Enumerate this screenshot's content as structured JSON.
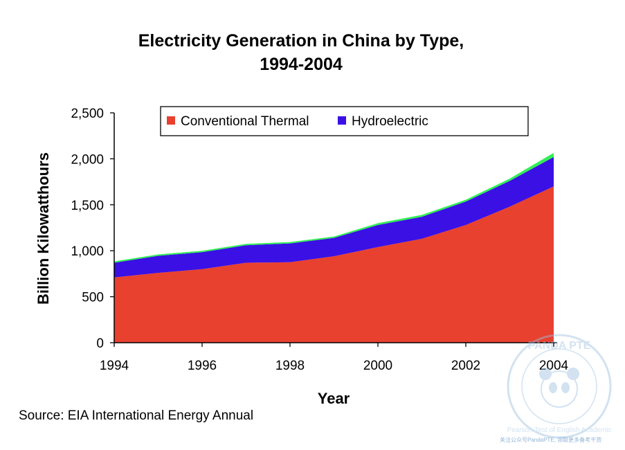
{
  "chart_data": {
    "type": "area",
    "title_line1": "Electricity Generation in China by Type,",
    "title_line2": "1994-2004",
    "xlabel": "Year",
    "ylabel": "Billion Kilowatthours",
    "xlim": [
      1994,
      2004
    ],
    "ylim": [
      0,
      2500
    ],
    "x_ticks": [
      "1994",
      "1996",
      "1998",
      "2000",
      "2002",
      "2004"
    ],
    "y_ticks": [
      "0",
      "500",
      "1,000",
      "1,500",
      "2,000",
      "2,500"
    ],
    "grid": false,
    "legend_position": "top",
    "stacked": true,
    "x": [
      1994,
      1995,
      1996,
      1997,
      1998,
      1999,
      2000,
      2001,
      2002,
      2003,
      2004
    ],
    "series": [
      {
        "name": "Conventional Thermal",
        "color": "#e8412f",
        "values": [
          710,
          760,
          800,
          870,
          875,
          940,
          1040,
          1130,
          1280,
          1480,
          1700
        ]
      },
      {
        "name": "Hydroelectric",
        "color": "#3a10e5",
        "values": [
          160,
          185,
          185,
          190,
          205,
          200,
          240,
          240,
          255,
          280,
          320
        ]
      },
      {
        "color": "#33ee55",
        "values": [
          15,
          15,
          15,
          15,
          15,
          15,
          20,
          20,
          20,
          25,
          45
        ]
      }
    ]
  },
  "source": "Source: EIA International Energy Annual",
  "watermark": {
    "brand": "PANDA PTE",
    "tagline": "Pearson Test of English Academic",
    "caption": "关注公众号PandaPTE, 领取更多备考干货"
  }
}
